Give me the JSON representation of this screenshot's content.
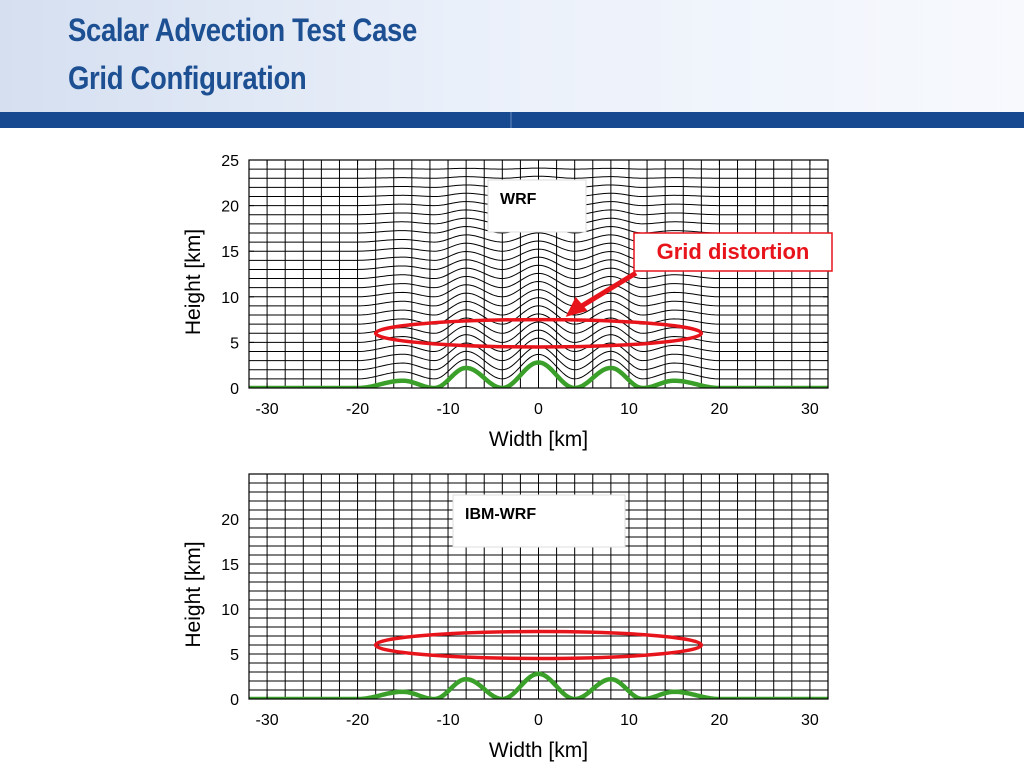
{
  "slide": {
    "title_line1": "Scalar Advection Test Case",
    "title_line2": "Grid Configuration",
    "colors": {
      "title": "#1d4f93",
      "band": "#16498f",
      "terrain": "#3aa02a",
      "highlight": "#e8141b"
    }
  },
  "chart_data": [
    {
      "type": "line",
      "panel": "top",
      "label_box": "WRF",
      "xlabel": "Width [km]",
      "ylabel": "Height [km]",
      "xlim": [
        -32,
        32
      ],
      "ylim": [
        0,
        25
      ],
      "xticks": [
        -30,
        -20,
        -10,
        0,
        10,
        20,
        30
      ],
      "yticks": [
        0,
        5,
        10,
        15,
        20,
        25
      ],
      "grid": true,
      "grid_style": "terrain-following",
      "grid_dx_km": 2,
      "grid_dz_km": 1,
      "terrain": {
        "x": [
          -32,
          -20,
          -15,
          -11.5,
          -8,
          -4,
          0,
          4,
          8,
          11.5,
          15,
          20,
          32
        ],
        "y": [
          0,
          0,
          0.8,
          0,
          2.2,
          0,
          2.8,
          0,
          2.2,
          0,
          0.8,
          0,
          0
        ]
      },
      "annotation": {
        "text": "Grid distortion",
        "ellipse": {
          "x": [
            -18,
            18
          ],
          "y": [
            4.5,
            7.5
          ]
        }
      }
    },
    {
      "type": "line",
      "panel": "bottom",
      "label_box": "IBM-WRF",
      "xlabel": "Width [km]",
      "ylabel": "Height [km]",
      "xlim": [
        -32,
        32
      ],
      "ylim": [
        0,
        25
      ],
      "xticks": [
        -30,
        -20,
        -10,
        0,
        10,
        20,
        30
      ],
      "yticks": [
        0,
        5,
        10,
        15,
        20
      ],
      "grid": true,
      "grid_style": "cartesian",
      "grid_dx_km": 2,
      "grid_dz_km": 1,
      "terrain": {
        "x": [
          -32,
          -20,
          -15,
          -11.5,
          -8,
          -4,
          0,
          4,
          8,
          11.5,
          15,
          20,
          32
        ],
        "y": [
          0,
          0,
          0.8,
          0,
          2.2,
          0,
          2.8,
          0,
          2.2,
          0,
          0.8,
          0,
          0
        ]
      },
      "annotation": {
        "ellipse": {
          "x": [
            -18,
            18
          ],
          "y": [
            4.5,
            7.5
          ]
        }
      }
    }
  ]
}
